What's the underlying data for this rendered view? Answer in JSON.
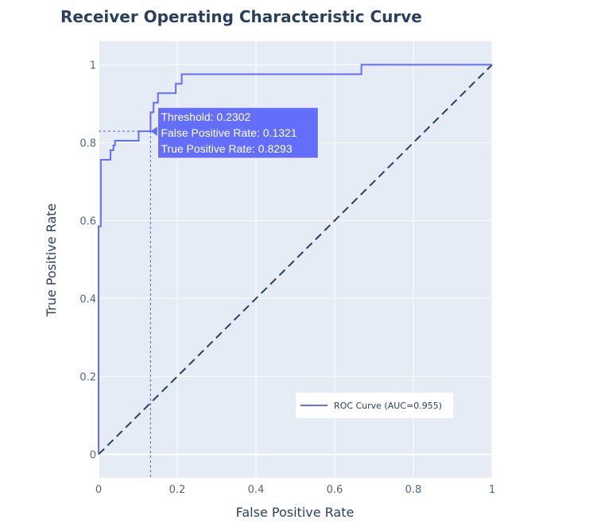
{
  "chart_data": {
    "type": "line",
    "title": "Receiver Operating Characteristic Curve",
    "xlabel": "False Positive Rate",
    "ylabel": "True Positive Rate",
    "xlim": [
      0,
      1
    ],
    "ylim": [
      -0.06,
      1.06
    ],
    "x_ticks": [
      0,
      0.2,
      0.4,
      0.6,
      0.8,
      1
    ],
    "x_tick_labels": [
      "0",
      "0.2",
      "0.4",
      "0.6",
      "0.8",
      "1"
    ],
    "y_ticks": [
      0,
      0.2,
      0.4,
      0.6,
      0.8,
      1
    ],
    "y_tick_labels": [
      "0",
      "0.2",
      "0.4",
      "0.6",
      "0.8",
      "1"
    ],
    "grid": true,
    "legend_position": "bottom-right",
    "series": [
      {
        "name": "ROC Curve (AUC=0.955)",
        "color": "#636efa",
        "line": "solid",
        "x": [
          0,
          0,
          0.0057,
          0.0057,
          0.0302,
          0.0302,
          0.0377,
          0.0377,
          0.0415,
          0.0415,
          0.1019,
          0.1019,
          0.1321,
          0.1321,
          0.1396,
          0.1396,
          0.1509,
          0.1509,
          0.1962,
          0.1962,
          0.2113,
          0.2113,
          0.6679,
          0.6679,
          1
        ],
        "y": [
          0,
          0.5854,
          0.5854,
          0.7561,
          0.7561,
          0.7805,
          0.7805,
          0.7927,
          0.7927,
          0.8049,
          0.8049,
          0.8293,
          0.8293,
          0.878,
          0.878,
          0.9024,
          0.9024,
          0.9268,
          0.9268,
          0.9512,
          0.9512,
          0.9756,
          0.9756,
          1,
          1
        ]
      },
      {
        "color": "#2a3f5f",
        "line": "dash",
        "x": [
          0,
          1
        ],
        "y": [
          0,
          1
        ]
      }
    ],
    "hover": {
      "x": 0.1321,
      "y": 0.8293,
      "threshold_label": "Threshold: 0.2302",
      "fpr_label": "False Positive Rate: 0.1321",
      "tpr_label": "True Positive Rate: 0.8293",
      "color": "#636efa"
    }
  }
}
